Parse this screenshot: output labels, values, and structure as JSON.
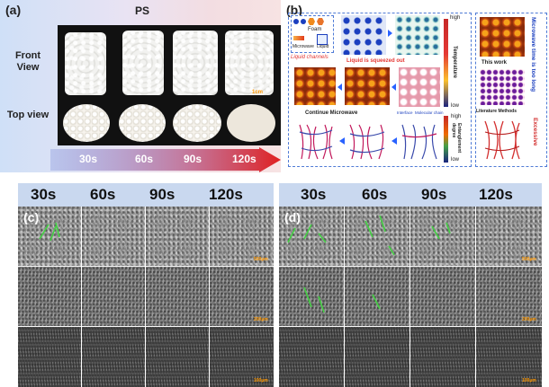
{
  "panel_a": {
    "tag": "(a)",
    "material": "PS",
    "row_labels": [
      "Front View",
      "Top view"
    ],
    "scale_label": "1cm",
    "times": [
      "30s",
      "60s",
      "90s",
      "120s"
    ]
  },
  "panel_b": {
    "tag": "(b)",
    "legend": {
      "foam": "Foam",
      "microwave": "Microwave",
      "liquid": "Liquid"
    },
    "liquid_squeezed": "Liquid is squeezed out",
    "liquid_channel": "Liquid channels",
    "temperature": {
      "label": "Temperature",
      "high": "high",
      "low": "low"
    },
    "entanglement": {
      "label": "Entanglement degree",
      "high": "high",
      "low": "low"
    },
    "continue": "Continue Microwave",
    "interface": "Interface",
    "molecular_chain": "Molecular chain",
    "this_work": "This work",
    "literature": "Literature Methods",
    "too_long": "Microwave time is too long",
    "excessive": "Excessive"
  },
  "panel_c": {
    "tag": "(c)",
    "times": [
      "30s",
      "60s",
      "90s",
      "120s"
    ],
    "scales": [
      "500μm",
      "200μm",
      "100μm"
    ]
  },
  "panel_d": {
    "tag": "(d)",
    "times": [
      "30s",
      "60s",
      "90s",
      "120s"
    ],
    "scales": [
      "500μm",
      "200μm",
      "100μm"
    ]
  },
  "colors": {
    "arrow": "#e02020",
    "dash": "#4f7bd6",
    "time_band_start": "#3a4fb8",
    "time_band_end": "#c8162a"
  }
}
